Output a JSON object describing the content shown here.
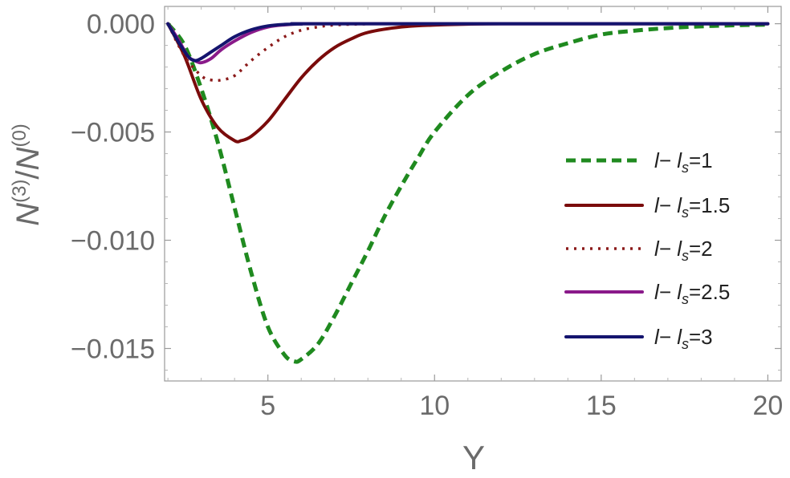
{
  "chart_data": {
    "type": "line",
    "title": "",
    "xlabel": "Y",
    "ylabel": {
      "base1": "N",
      "sup1": "(3)",
      "sep": "/",
      "base2": "N",
      "sup2": "(0)"
    },
    "xlim": [
      1.9,
      20.4
    ],
    "ylim": [
      -0.0165,
      0.0008
    ],
    "x_ticks": [
      5,
      10,
      15,
      20
    ],
    "x_tick_labels": [
      "5",
      "10",
      "15",
      "20"
    ],
    "y_ticks": [
      0.0,
      -0.005,
      -0.01,
      -0.015
    ],
    "y_tick_labels": [
      "0.000",
      "−0.005",
      "−0.010",
      "−0.015"
    ],
    "grid": false,
    "legend_position": "right",
    "series": [
      {
        "name": "l− l_s=1",
        "legend": {
          "a": "l− ",
          "b": "l",
          "sub": "s",
          "eq": "=1"
        },
        "color": "#1f8a1f",
        "style": "dashed",
        "x": [
          2.0,
          2.5,
          3.0,
          3.5,
          4.0,
          4.5,
          5.0,
          5.5,
          5.8,
          6.0,
          6.5,
          7.0,
          7.5,
          8.0,
          8.5,
          9.0,
          9.5,
          10.0,
          11.0,
          12.0,
          13.0,
          14.0,
          15.0,
          16.0,
          17.0,
          18.0,
          19.0,
          20.0
        ],
        "y": [
          0.0,
          -0.001,
          -0.003,
          -0.0055,
          -0.0085,
          -0.0115,
          -0.014,
          -0.0153,
          -0.0156,
          -0.0155,
          -0.0148,
          -0.0135,
          -0.012,
          -0.0105,
          -0.0089,
          -0.0075,
          -0.0062,
          -0.005,
          -0.0033,
          -0.0022,
          -0.0014,
          -0.0009,
          -0.0005,
          -0.00032,
          -0.0002,
          -0.00012,
          -7e-05,
          -4e-05
        ]
      },
      {
        "name": "l− l_s=1.5",
        "legend": {
          "a": "l− ",
          "b": "l",
          "sub": "s",
          "eq": "=1.5"
        },
        "color": "#7a0b0b",
        "style": "solid",
        "x": [
          2.0,
          2.5,
          3.0,
          3.5,
          4.0,
          4.2,
          4.5,
          5.0,
          5.5,
          6.0,
          6.5,
          7.0,
          7.5,
          8.0,
          9.0,
          10.0,
          11.0,
          12.0,
          14.0,
          20.0
        ],
        "y": [
          0.0,
          -0.0015,
          -0.0035,
          -0.0048,
          -0.0054,
          -0.0054,
          -0.0052,
          -0.0045,
          -0.0035,
          -0.0025,
          -0.0017,
          -0.0011,
          -0.0007,
          -0.0004,
          -0.00015,
          -6e-05,
          -2e-05,
          0.0,
          0.0,
          0.0
        ]
      },
      {
        "name": "l− l_s=2",
        "legend": {
          "a": "l− ",
          "b": "l",
          "sub": "s",
          "eq": "=2"
        },
        "color": "#8b1a1a",
        "style": "dotted",
        "x": [
          2.0,
          2.5,
          3.0,
          3.3,
          3.6,
          4.0,
          4.5,
          5.0,
          5.5,
          6.0,
          6.5,
          7.0,
          8.0,
          9.0,
          20.0
        ],
        "y": [
          0.0,
          -0.0015,
          -0.0024,
          -0.0026,
          -0.0026,
          -0.0024,
          -0.0017,
          -0.0011,
          -0.0006,
          -0.0003,
          -0.00015,
          -6e-05,
          -1e-05,
          0.0,
          0.0
        ]
      },
      {
        "name": "l− l_s=2.5",
        "legend": {
          "a": "l− ",
          "b": "l",
          "sub": "s",
          "eq": "=2.5"
        },
        "color": "#8a1a8a",
        "style": "solid",
        "x": [
          2.0,
          2.3,
          2.6,
          2.8,
          3.0,
          3.3,
          3.6,
          4.0,
          4.5,
          5.0,
          5.5,
          6.0,
          7.0,
          20.0
        ],
        "y": [
          0.0,
          -0.0007,
          -0.0015,
          -0.0017,
          -0.0018,
          -0.0016,
          -0.0012,
          -0.0008,
          -0.0004,
          -0.00015,
          -5e-05,
          -1e-05,
          0.0,
          0.0
        ]
      },
      {
        "name": "l− l_s=3",
        "legend": {
          "a": "l− ",
          "b": "l",
          "sub": "s",
          "eq": "=3"
        },
        "color": "#14146e",
        "style": "solid",
        "x": [
          2.0,
          2.3,
          2.6,
          2.8,
          3.0,
          3.3,
          3.6,
          4.0,
          4.5,
          5.0,
          5.5,
          6.0,
          7.0,
          20.0
        ],
        "y": [
          0.0,
          -0.0008,
          -0.0015,
          -0.0017,
          -0.0016,
          -0.0013,
          -0.001,
          -0.0006,
          -0.00028,
          -0.0001,
          -3e-05,
          -1e-05,
          0.0,
          0.0
        ]
      }
    ]
  }
}
